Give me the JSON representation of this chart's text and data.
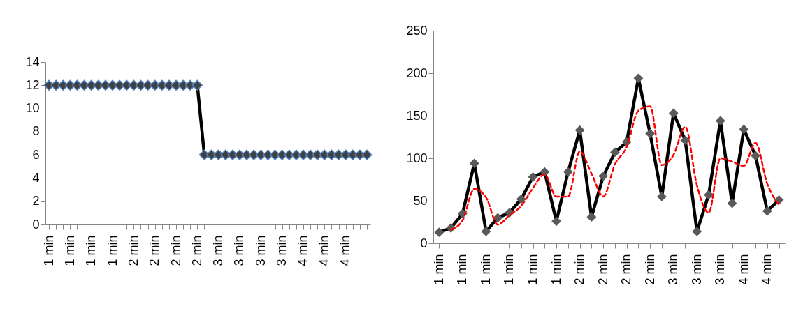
{
  "chart_data": [
    {
      "type": "line",
      "categories": [
        "1 min",
        null,
        null,
        "1 min",
        null,
        null,
        "1 min",
        null,
        null,
        "1 min",
        null,
        null,
        "2 min",
        null,
        null,
        "2 min",
        null,
        null,
        "2 min",
        null,
        null,
        "2 min",
        null,
        null,
        "3 min",
        null,
        null,
        "3 min",
        null,
        null,
        "3 min",
        null,
        null,
        "3 min",
        null,
        null,
        "4 min",
        null,
        null,
        "4 min",
        null,
        null,
        "4 min",
        null,
        null,
        null
      ],
      "series": [
        {
          "color": "#000000",
          "values": [
            12,
            12,
            12,
            12,
            12,
            12,
            12,
            12,
            12,
            12,
            12,
            12,
            12,
            12,
            12,
            12,
            12,
            12,
            12,
            12,
            12,
            12,
            6,
            6,
            6,
            6,
            6,
            6,
            6,
            6,
            6,
            6,
            6,
            6,
            6,
            6,
            6,
            6,
            6,
            6,
            6,
            6,
            6,
            6,
            6,
            6
          ]
        }
      ],
      "ylim": [
        0,
        14
      ],
      "yticks": [
        0,
        2,
        4,
        6,
        8,
        10,
        12,
        14
      ],
      "grid": false,
      "marker": "diamond",
      "line_style": "solid"
    },
    {
      "type": "line",
      "categories": [
        "1 min",
        null,
        "1 min",
        null,
        "1 min",
        null,
        "1 min",
        null,
        "1 min",
        null,
        "1 min",
        null,
        "2 min",
        null,
        "2 min",
        null,
        "2 min",
        null,
        "2 min",
        null,
        "3 min",
        null,
        "3 min",
        null,
        "3 min",
        null,
        "4 min",
        null,
        "4 min",
        null
      ],
      "series": [
        {
          "color": "#000000",
          "marker": "diamond",
          "line_style": "solid",
          "values": [
            13,
            18,
            35,
            94,
            14,
            30,
            36,
            52,
            78,
            84,
            26,
            84,
            133,
            31,
            79,
            107,
            119,
            194,
            129,
            55,
            153,
            121,
            14,
            57,
            144,
            47,
            134,
            103,
            38,
            51
          ]
        },
        {
          "color": "#ff0000",
          "marker": "none",
          "line_style": "dashed",
          "values": [
            null,
            16,
            27,
            64,
            54,
            22,
            33,
            44,
            65,
            81,
            55,
            55,
            108,
            82,
            55,
            93,
            113,
            156,
            161,
            92,
            104,
            137,
            68,
            36,
            100,
            96,
            91,
            118,
            70,
            45
          ]
        }
      ],
      "ylim": [
        0,
        250
      ],
      "yticks": [
        0,
        50,
        100,
        150,
        200,
        250
      ],
      "grid": false
    }
  ]
}
